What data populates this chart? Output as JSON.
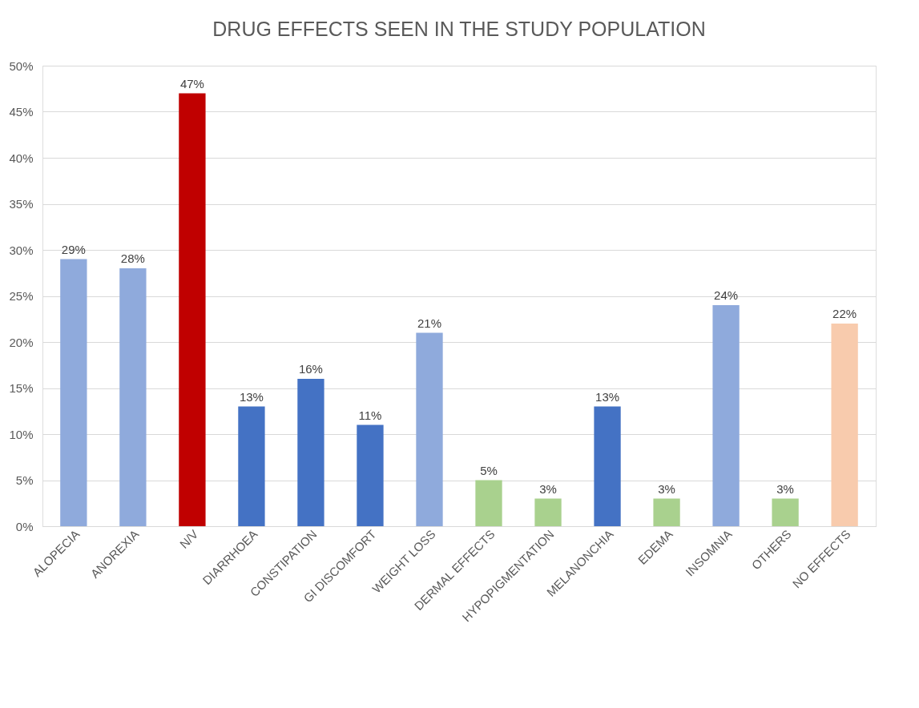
{
  "chart_data": {
    "type": "bar",
    "title": "DRUG EFFECTS SEEN IN THE STUDY POPULATION",
    "categories": [
      "ALOPECIA",
      "ANOREXIA",
      "N/V",
      "DIARRHOEA",
      "CONSTIPATION",
      "GI DISCOMFORT",
      "WEIGHT LOSS",
      "DERMAL EFFECTS",
      "HYPOPIGMENTATION",
      "MELANONCHIA",
      "EDEMA",
      "INSOMNIA",
      "OTHERS",
      "NO EFFECTS"
    ],
    "values": [
      29,
      28,
      47,
      13,
      16,
      11,
      21,
      5,
      3,
      13,
      3,
      24,
      3,
      22
    ],
    "value_labels": [
      "29%",
      "28%",
      "47%",
      "13%",
      "16%",
      "11%",
      "21%",
      "5%",
      "3%",
      "13%",
      "3%",
      "24%",
      "3%",
      "22%"
    ],
    "colors": [
      "#8faadc",
      "#8faadc",
      "#c00000",
      "#4472c4",
      "#4472c4",
      "#4472c4",
      "#8faadc",
      "#a9d18e",
      "#a9d18e",
      "#4472c4",
      "#a9d18e",
      "#8faadc",
      "#a9d18e",
      "#f8cbad"
    ],
    "ylim": [
      0,
      50
    ],
    "yticks": [
      {
        "value": 0,
        "label": "0%"
      },
      {
        "value": 5,
        "label": "5%"
      },
      {
        "value": 10,
        "label": "10%"
      },
      {
        "value": 15,
        "label": "15%"
      },
      {
        "value": 20,
        "label": "20%"
      },
      {
        "value": 25,
        "label": "25%"
      },
      {
        "value": 30,
        "label": "30%"
      },
      {
        "value": 35,
        "label": "35%"
      },
      {
        "value": 40,
        "label": "40%"
      },
      {
        "value": 45,
        "label": "45%"
      },
      {
        "value": 50,
        "label": "50%"
      }
    ],
    "grid": "y"
  }
}
